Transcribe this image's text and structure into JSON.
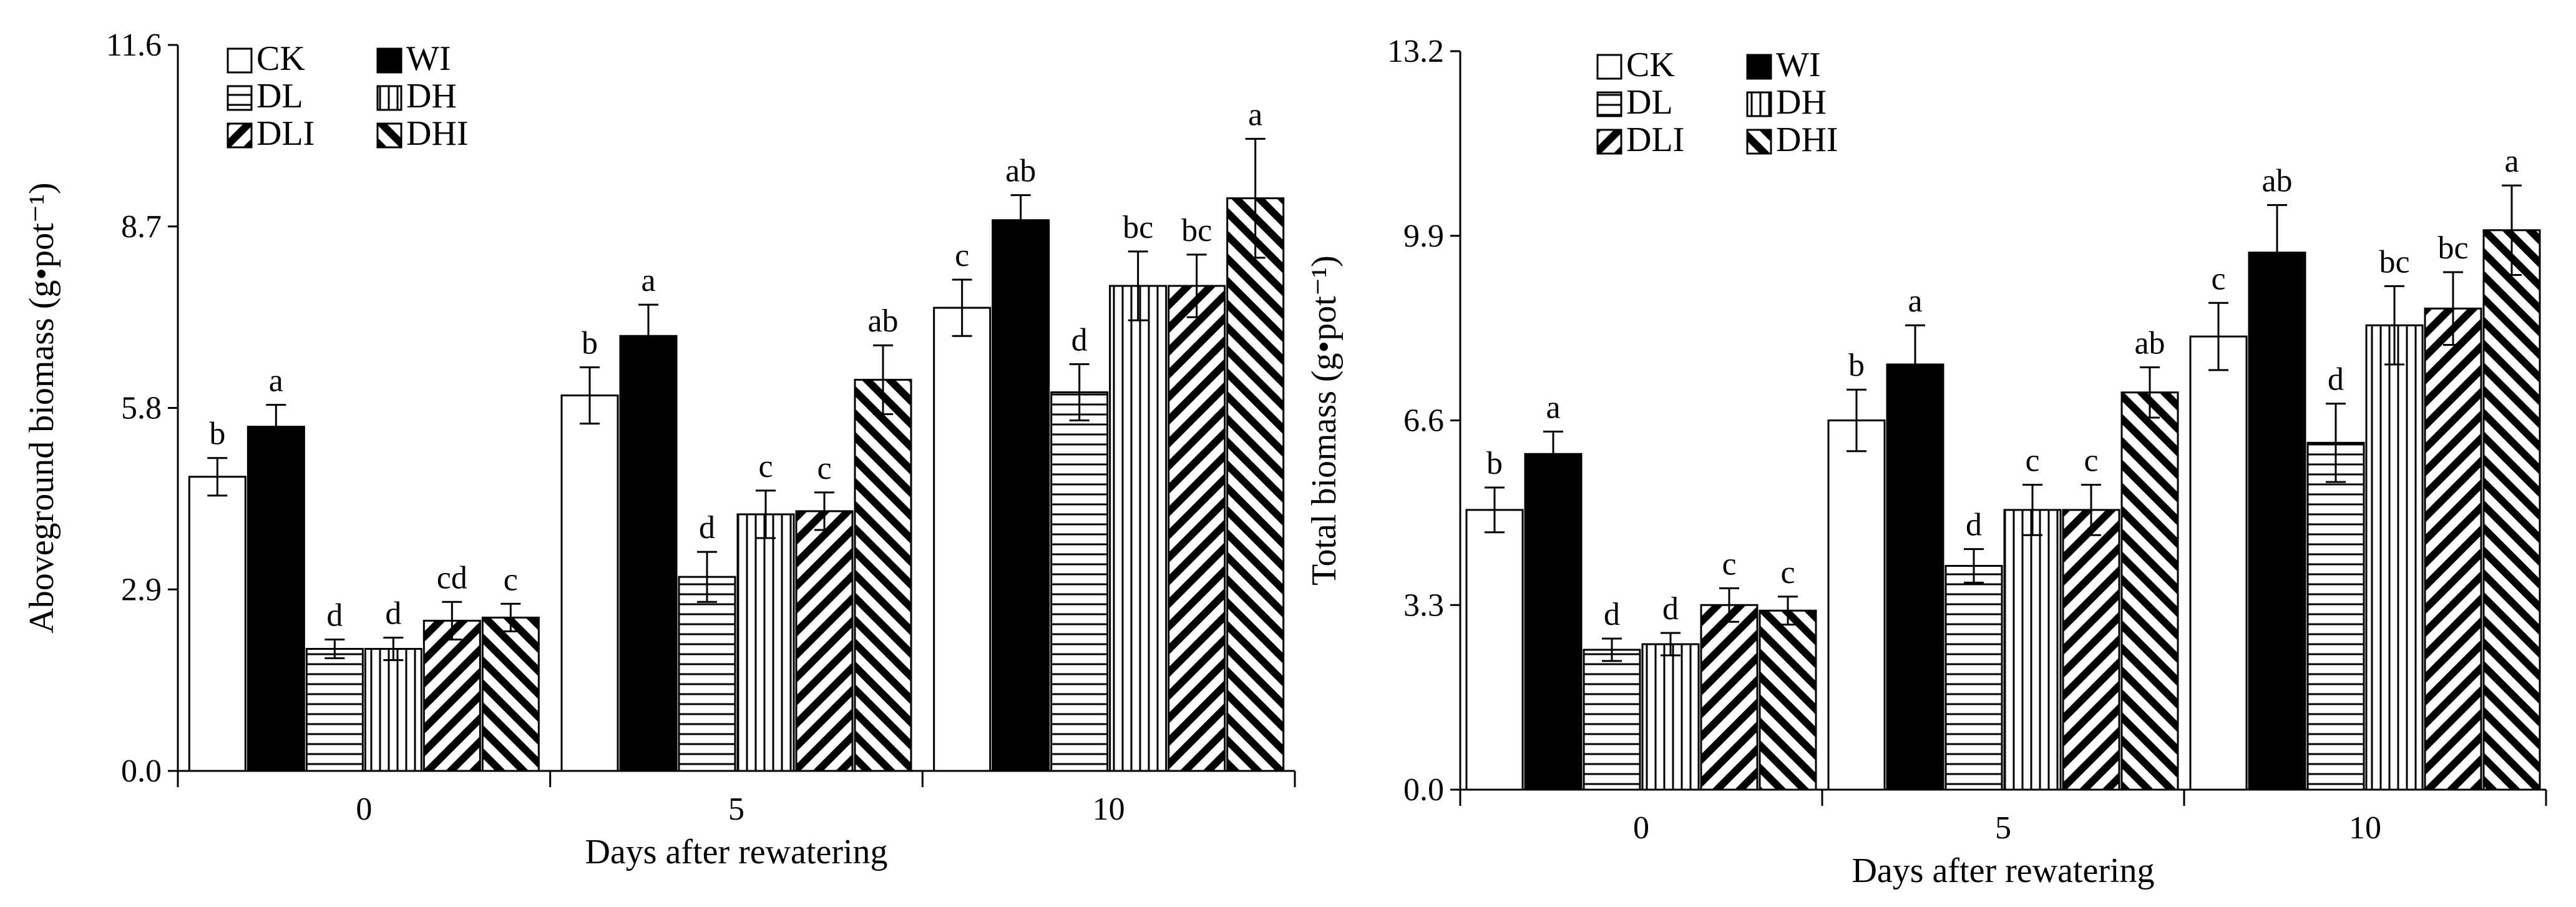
{
  "chart_data": [
    {
      "type": "bar",
      "title": "",
      "xlabel": "Days after rewatering",
      "ylabel": "Aboveground biomass (g•pot⁻¹)",
      "ylim": [
        0,
        11.6
      ],
      "yticks": [
        "0.0",
        "2.9",
        "5.8",
        "8.7",
        "11.6"
      ],
      "categories": [
        "0",
        "5",
        "10"
      ],
      "legend_position": "top-left",
      "series": [
        {
          "name": "CK",
          "values": [
            4.7,
            6.0,
            7.4
          ],
          "errors": [
            0.3,
            0.45,
            0.45
          ],
          "letters": [
            "b",
            "b",
            "c"
          ]
        },
        {
          "name": "WI",
          "values": [
            5.5,
            6.95,
            8.8
          ],
          "errors": [
            0.35,
            0.5,
            0.4
          ],
          "letters": [
            "a",
            "a",
            "ab"
          ]
        },
        {
          "name": "DL",
          "values": [
            1.95,
            3.1,
            6.05
          ],
          "errors": [
            0.15,
            0.4,
            0.45
          ],
          "letters": [
            "d",
            "d",
            "d"
          ]
        },
        {
          "name": "DH",
          "values": [
            1.95,
            4.1,
            7.75
          ],
          "errors": [
            0.18,
            0.38,
            0.55
          ],
          "letters": [
            "d",
            "c",
            "bc"
          ]
        },
        {
          "name": "DLI",
          "values": [
            2.4,
            4.15,
            7.75
          ],
          "errors": [
            0.3,
            0.3,
            0.5
          ],
          "letters": [
            "cd",
            "c",
            "bc"
          ]
        },
        {
          "name": "DHI",
          "values": [
            2.45,
            6.25,
            9.15
          ],
          "errors": [
            0.22,
            0.55,
            0.95
          ],
          "letters": [
            "c",
            "ab",
            "a"
          ]
        }
      ]
    },
    {
      "type": "bar",
      "title": "",
      "xlabel": "Days after rewatering",
      "ylabel": "Total biomass (g•pot⁻¹)",
      "ylim": [
        0,
        13.2
      ],
      "yticks": [
        "0.0",
        "3.3",
        "6.6",
        "9.9",
        "13.2"
      ],
      "categories": [
        "0",
        "5",
        "10"
      ],
      "legend_position": "top-left",
      "series": [
        {
          "name": "CK",
          "values": [
            5.0,
            6.6,
            8.1
          ],
          "errors": [
            0.4,
            0.55,
            0.6
          ],
          "letters": [
            "b",
            "b",
            "c"
          ]
        },
        {
          "name": "WI",
          "values": [
            6.0,
            7.6,
            9.6
          ],
          "errors": [
            0.4,
            0.7,
            0.85
          ],
          "letters": [
            "a",
            "a",
            "ab"
          ]
        },
        {
          "name": "DL",
          "values": [
            2.5,
            4.0,
            6.2
          ],
          "errors": [
            0.2,
            0.3,
            0.7
          ],
          "letters": [
            "d",
            "d",
            "d"
          ]
        },
        {
          "name": "DH",
          "values": [
            2.6,
            5.0,
            8.3
          ],
          "errors": [
            0.2,
            0.45,
            0.7
          ],
          "letters": [
            "d",
            "c",
            "bc"
          ]
        },
        {
          "name": "DLI",
          "values": [
            3.3,
            5.0,
            8.6
          ],
          "errors": [
            0.3,
            0.45,
            0.65
          ],
          "letters": [
            "c",
            "c",
            "bc"
          ]
        },
        {
          "name": "DHI",
          "values": [
            3.2,
            7.1,
            10.0
          ],
          "errors": [
            0.25,
            0.45,
            0.8
          ],
          "letters": [
            "c",
            "ab",
            "a"
          ]
        }
      ]
    }
  ]
}
